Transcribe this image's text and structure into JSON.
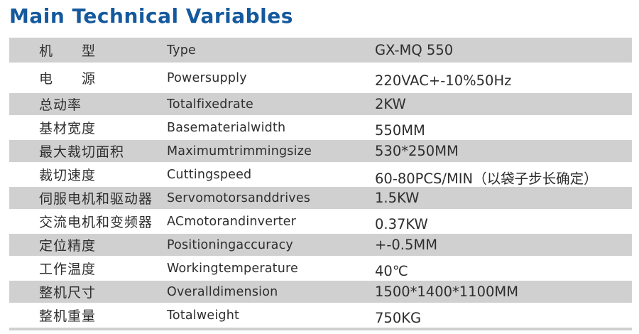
{
  "page": {
    "title": "Main Technical Variables"
  },
  "colors": {
    "title_blue": "#15599d",
    "band_gray": "#d0d0d0",
    "text": "#2e2e2e"
  },
  "table": {
    "rows": [
      {
        "zh": "机　　型",
        "en": "Type",
        "value": "GX-MQ 550"
      },
      {
        "zh": "电　　源",
        "en": "Powersupply",
        "value": "220VAC+-10%50Hz"
      },
      {
        "zh": "总动率",
        "en": "Totalfixedrate",
        "value": "2KW"
      },
      {
        "zh": "基材宽度",
        "en": "Basematerialwidth",
        "value": "550MM"
      },
      {
        "zh": "最大裁切面积",
        "en": "Maximumtrimmingsize",
        "value": "530*250MM"
      },
      {
        "zh": "裁切速度",
        "en": "Cuttingspeed",
        "value": "60-80PCS/MIN（以袋子步长确定）"
      },
      {
        "zh": "伺服电机和驱动器",
        "en": "Servomotorsanddrives",
        "value": "1.5KW"
      },
      {
        "zh": "交流电机和变频器",
        "en": "ACmotorandinverter",
        "value": "0.37KW"
      },
      {
        "zh": "定位精度",
        "en": "Positioningaccuracy",
        "value": "+-0.5MM"
      },
      {
        "zh": "工作温度",
        "en": "Workingtemperature",
        "value": "40℃"
      },
      {
        "zh": "整机尺寸",
        "en": "Overalldimension",
        "value": "1500*1400*1100MM"
      },
      {
        "zh": "整机重量",
        "en": "Totalweight",
        "value": "750KG"
      }
    ]
  }
}
